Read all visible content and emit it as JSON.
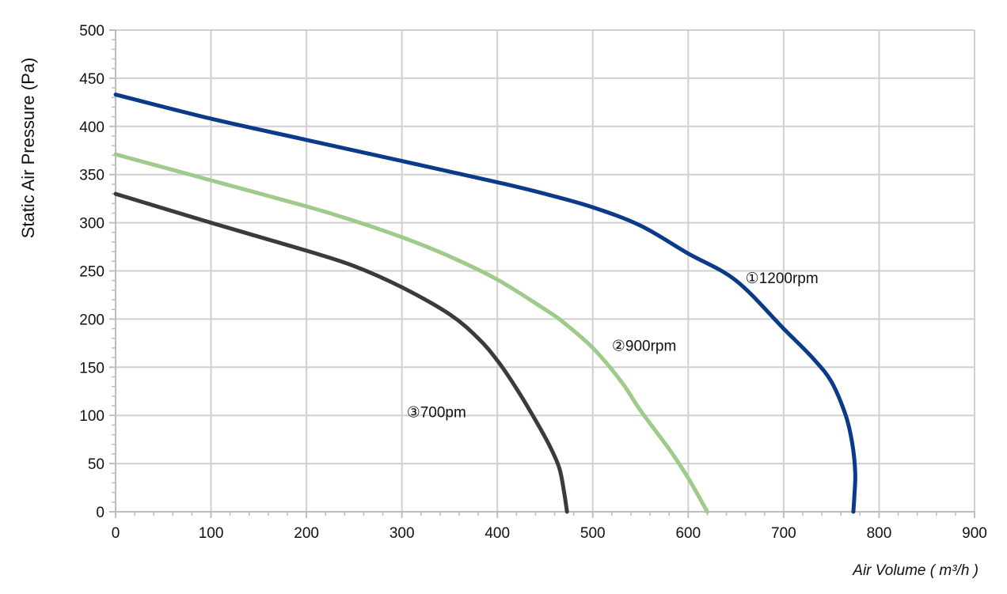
{
  "chart_data": {
    "type": "line",
    "title": "",
    "xlabel": "Air Volume ( m³/h )",
    "ylabel": "Static Air Pressure  (Pa)",
    "xlim": [
      0,
      900
    ],
    "ylim": [
      0,
      500
    ],
    "x_ticks": [
      0,
      100,
      200,
      300,
      400,
      500,
      600,
      700,
      800,
      900
    ],
    "y_ticks": [
      0,
      50,
      100,
      150,
      200,
      250,
      300,
      350,
      400,
      450,
      500
    ],
    "x_tick_labels": [
      "0",
      "100",
      "200",
      "300",
      "400",
      "500",
      "600",
      "700",
      "800",
      "900"
    ],
    "y_tick_labels": [
      "0",
      "50",
      "100",
      "150",
      "200",
      "250",
      "300",
      "350",
      "400",
      "450",
      "500"
    ],
    "grid": true,
    "legend": "none",
    "series": [
      {
        "name": "①1200rpm",
        "color": "#0b3a8a",
        "label_at": [
          660,
          243
        ],
        "points": [
          [
            0,
            433
          ],
          [
            100,
            408
          ],
          [
            200,
            386
          ],
          [
            300,
            364
          ],
          [
            400,
            342
          ],
          [
            450,
            330
          ],
          [
            500,
            316
          ],
          [
            550,
            297
          ],
          [
            600,
            268
          ],
          [
            650,
            240
          ],
          [
            700,
            190
          ],
          [
            730,
            160
          ],
          [
            750,
            135
          ],
          [
            765,
            100
          ],
          [
            772,
            70
          ],
          [
            775,
            40
          ],
          [
            774,
            15
          ],
          [
            773,
            0
          ]
        ]
      },
      {
        "name": "②900rpm",
        "color": "#9ecb8a",
        "label_at": [
          520,
          173
        ],
        "points": [
          [
            0,
            371
          ],
          [
            100,
            344
          ],
          [
            200,
            317
          ],
          [
            250,
            302
          ],
          [
            300,
            285
          ],
          [
            350,
            265
          ],
          [
            400,
            241
          ],
          [
            450,
            210
          ],
          [
            470,
            196
          ],
          [
            500,
            170
          ],
          [
            530,
            135
          ],
          [
            550,
            105
          ],
          [
            580,
            65
          ],
          [
            600,
            35
          ],
          [
            620,
            0
          ]
        ]
      },
      {
        "name": "③700pm",
        "color": "#3b3b3b",
        "label_at": [
          305,
          104
        ],
        "points": [
          [
            0,
            330
          ],
          [
            100,
            300
          ],
          [
            200,
            271
          ],
          [
            250,
            255
          ],
          [
            300,
            233
          ],
          [
            350,
            205
          ],
          [
            380,
            180
          ],
          [
            400,
            157
          ],
          [
            420,
            128
          ],
          [
            440,
            95
          ],
          [
            455,
            68
          ],
          [
            465,
            45
          ],
          [
            470,
            20
          ],
          [
            473,
            0
          ]
        ]
      }
    ]
  }
}
